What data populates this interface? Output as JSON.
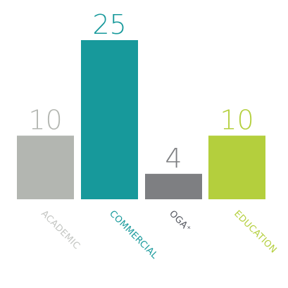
{
  "chart_data": {
    "type": "bar",
    "title": "",
    "xlabel": "",
    "ylabel": "",
    "ylim": [
      0,
      25
    ],
    "grid": false,
    "categories": [
      "ACADEMIC",
      "COMMERCIAL",
      "OGA⁺",
      "EDUCATION"
    ],
    "values": [
      10,
      25,
      4,
      10
    ],
    "value_labels": [
      "10",
      "25",
      "4",
      "10"
    ],
    "colors": [
      "#b3b6b1",
      "#17999b",
      "#7e7f82",
      "#b4cf3d"
    ],
    "label_colors": [
      "#c3c5c2",
      "#17999b",
      "#54575f",
      "#b4cf3d"
    ]
  }
}
